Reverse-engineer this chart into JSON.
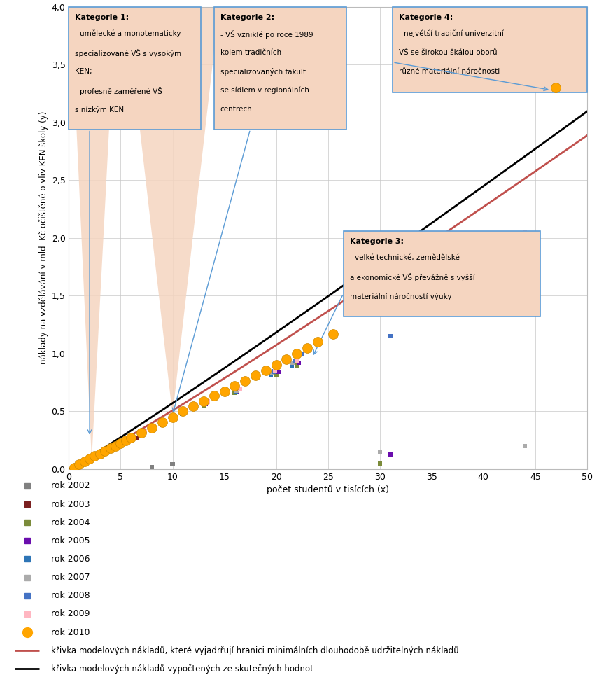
{
  "xlabel": "počet studentů v tisících (x)",
  "ylabel": "náklady na vzdělávání v mld. Kč očištěné o vliv KEN školy (y)",
  "xlim": [
    0,
    50
  ],
  "ylim": [
    0.0,
    4.0
  ],
  "yticks": [
    0.0,
    0.5,
    1.0,
    1.5,
    2.0,
    2.5,
    3.0,
    3.5,
    4.0
  ],
  "xticks": [
    0,
    5,
    10,
    15,
    20,
    25,
    30,
    35,
    40,
    45,
    50
  ],
  "year_colors": {
    "2002": "#808080",
    "2003": "#7B2020",
    "2004": "#7B8B3A",
    "2005": "#6A0DAD",
    "2006": "#2E75B6",
    "2007": "#ABABAB",
    "2008": "#4472C4",
    "2009": "#FFB6C1",
    "2010": "#FFA500"
  },
  "scatter_data": {
    "2002": [
      [
        0.4,
        0.01
      ],
      [
        0.6,
        0.02
      ],
      [
        0.8,
        0.03
      ],
      [
        1.0,
        0.04
      ],
      [
        1.3,
        0.05
      ],
      [
        1.6,
        0.07
      ],
      [
        2.0,
        0.08
      ],
      [
        2.5,
        0.1
      ],
      [
        3.0,
        0.12
      ],
      [
        4.0,
        0.17
      ],
      [
        6.0,
        0.25
      ],
      [
        8.0,
        0.02
      ],
      [
        10.0,
        0.04
      ]
    ],
    "2003": [
      [
        0.5,
        0.015
      ],
      [
        0.7,
        0.025
      ],
      [
        0.9,
        0.035
      ],
      [
        1.1,
        0.05
      ],
      [
        1.4,
        0.06
      ],
      [
        1.7,
        0.08
      ],
      [
        2.1,
        0.09
      ],
      [
        2.6,
        0.11
      ],
      [
        3.1,
        0.13
      ],
      [
        4.5,
        0.18
      ],
      [
        6.5,
        0.27
      ],
      [
        9.0,
        0.38
      ]
    ],
    "2004": [
      [
        0.5,
        0.015
      ],
      [
        0.7,
        0.025
      ],
      [
        1.0,
        0.04
      ],
      [
        1.3,
        0.055
      ],
      [
        1.6,
        0.07
      ],
      [
        1.9,
        0.085
      ],
      [
        2.3,
        0.1
      ],
      [
        2.8,
        0.12
      ],
      [
        3.3,
        0.14
      ],
      [
        4.0,
        0.17
      ],
      [
        5.0,
        0.21
      ],
      [
        7.0,
        0.3
      ],
      [
        9.0,
        0.39
      ],
      [
        11.0,
        0.48
      ],
      [
        13.0,
        0.55
      ],
      [
        16.0,
        0.66
      ],
      [
        20.0,
        0.82
      ],
      [
        22.0,
        0.9
      ],
      [
        30.0,
        0.05
      ]
    ],
    "2005": [
      [
        0.5,
        0.015
      ],
      [
        0.8,
        0.03
      ],
      [
        1.1,
        0.045
      ],
      [
        1.4,
        0.06
      ],
      [
        1.7,
        0.075
      ],
      [
        2.0,
        0.09
      ],
      [
        2.4,
        0.105
      ],
      [
        2.9,
        0.125
      ],
      [
        3.4,
        0.145
      ],
      [
        4.2,
        0.175
      ],
      [
        5.2,
        0.215
      ],
      [
        7.2,
        0.31
      ],
      [
        9.2,
        0.4
      ],
      [
        11.2,
        0.49
      ],
      [
        13.2,
        0.565
      ],
      [
        16.2,
        0.675
      ],
      [
        20.2,
        0.84
      ],
      [
        22.2,
        0.92
      ],
      [
        31.0,
        0.13
      ]
    ],
    "2006": [
      [
        0.5,
        0.015
      ],
      [
        0.8,
        0.03
      ],
      [
        1.1,
        0.045
      ],
      [
        1.5,
        0.065
      ],
      [
        1.9,
        0.085
      ],
      [
        2.3,
        0.105
      ],
      [
        2.7,
        0.12
      ],
      [
        3.2,
        0.145
      ],
      [
        3.9,
        0.17
      ],
      [
        4.9,
        0.21
      ],
      [
        6.9,
        0.3
      ],
      [
        8.9,
        0.39
      ],
      [
        10.9,
        0.48
      ],
      [
        13.0,
        0.565
      ],
      [
        16.1,
        0.675
      ],
      [
        19.5,
        0.82
      ],
      [
        21.5,
        0.9
      ]
    ],
    "2007": [
      [
        0.5,
        0.015
      ],
      [
        0.8,
        0.03
      ],
      [
        1.1,
        0.045
      ],
      [
        1.5,
        0.065
      ],
      [
        1.9,
        0.085
      ],
      [
        2.3,
        0.105
      ],
      [
        2.8,
        0.125
      ],
      [
        3.3,
        0.15
      ],
      [
        4.0,
        0.175
      ],
      [
        5.0,
        0.215
      ],
      [
        7.0,
        0.31
      ],
      [
        9.0,
        0.4
      ],
      [
        11.0,
        0.49
      ],
      [
        13.1,
        0.565
      ],
      [
        16.2,
        0.68
      ],
      [
        19.6,
        0.83
      ],
      [
        21.6,
        0.92
      ],
      [
        30.0,
        0.15
      ],
      [
        44.0,
        0.2
      ]
    ],
    "2008": [
      [
        0.5,
        0.015
      ],
      [
        0.8,
        0.03
      ],
      [
        1.2,
        0.05
      ],
      [
        1.6,
        0.07
      ],
      [
        2.0,
        0.09
      ],
      [
        2.4,
        0.11
      ],
      [
        2.9,
        0.13
      ],
      [
        3.5,
        0.155
      ],
      [
        4.2,
        0.185
      ],
      [
        5.2,
        0.225
      ],
      [
        7.2,
        0.32
      ],
      [
        9.2,
        0.415
      ],
      [
        11.2,
        0.505
      ],
      [
        13.3,
        0.58
      ],
      [
        16.4,
        0.69
      ],
      [
        19.8,
        0.845
      ],
      [
        21.8,
        0.935
      ],
      [
        22.5,
        1.0
      ],
      [
        31.0,
        1.15
      ],
      [
        33.0,
        1.35
      ]
    ],
    "2009": [
      [
        0.5,
        0.015
      ],
      [
        0.8,
        0.03
      ],
      [
        1.2,
        0.05
      ],
      [
        1.6,
        0.07
      ],
      [
        2.0,
        0.09
      ],
      [
        2.4,
        0.11
      ],
      [
        2.9,
        0.13
      ],
      [
        3.5,
        0.155
      ],
      [
        4.3,
        0.19
      ],
      [
        5.3,
        0.23
      ],
      [
        7.3,
        0.325
      ],
      [
        9.3,
        0.42
      ],
      [
        11.3,
        0.51
      ],
      [
        13.4,
        0.585
      ],
      [
        16.5,
        0.695
      ],
      [
        19.9,
        0.85
      ],
      [
        22.0,
        0.94
      ],
      [
        44.0,
        2.05
      ]
    ],
    "2010": [
      [
        0.5,
        0.015
      ],
      [
        1.0,
        0.04
      ],
      [
        1.5,
        0.065
      ],
      [
        2.0,
        0.09
      ],
      [
        2.5,
        0.115
      ],
      [
        3.0,
        0.135
      ],
      [
        3.5,
        0.16
      ],
      [
        4.0,
        0.18
      ],
      [
        4.5,
        0.2
      ],
      [
        5.0,
        0.225
      ],
      [
        5.5,
        0.25
      ],
      [
        6.0,
        0.27
      ],
      [
        7.0,
        0.315
      ],
      [
        8.0,
        0.36
      ],
      [
        9.0,
        0.405
      ],
      [
        10.0,
        0.45
      ],
      [
        11.0,
        0.5
      ],
      [
        12.0,
        0.545
      ],
      [
        13.0,
        0.59
      ],
      [
        14.0,
        0.635
      ],
      [
        15.0,
        0.675
      ],
      [
        16.0,
        0.72
      ],
      [
        17.0,
        0.765
      ],
      [
        18.0,
        0.81
      ],
      [
        19.0,
        0.855
      ],
      [
        20.0,
        0.9
      ],
      [
        21.0,
        0.95
      ],
      [
        22.0,
        1.0
      ],
      [
        23.0,
        1.045
      ],
      [
        24.0,
        1.1
      ],
      [
        25.5,
        1.17
      ],
      [
        47.0,
        3.3
      ]
    ]
  },
  "scatter_sizes": {
    "2002": 20,
    "2003": 20,
    "2004": 20,
    "2005": 20,
    "2006": 20,
    "2007": 20,
    "2008": 20,
    "2009": 20,
    "2010": 100
  },
  "scatter_markers": {
    "2002": "s",
    "2003": "s",
    "2004": "s",
    "2005": "s",
    "2006": "s",
    "2007": "s",
    "2008": "s",
    "2009": "s",
    "2010": "o"
  },
  "background_color": "#FFFFFF",
  "plot_bg_color": "#FFFFFF",
  "grid_color": "#C8C8C8",
  "shade_color": "#F5D5C0",
  "box_face_color": "#F5D5C0",
  "box_edge_color": "#5B9BD5",
  "legend_entries": [
    {
      "label": "rok 2002",
      "color": "#808080",
      "marker": "s",
      "size": 6
    },
    {
      "label": "rok 2003",
      "color": "#7B2020",
      "marker": "s",
      "size": 6
    },
    {
      "label": "rok 2004",
      "color": "#7B8B3A",
      "marker": "s",
      "size": 6
    },
    {
      "label": "rok 2005",
      "color": "#6A0DAD",
      "marker": "s",
      "size": 6
    },
    {
      "label": "rok 2006",
      "color": "#2E75B6",
      "marker": "s",
      "size": 6
    },
    {
      "label": "rok 2007",
      "color": "#ABABAB",
      "marker": "s",
      "size": 6
    },
    {
      "label": "rok 2008",
      "color": "#4472C4",
      "marker": "s",
      "size": 6
    },
    {
      "label": "rok 2009",
      "color": "#FFB6C1",
      "marker": "s",
      "size": 6
    },
    {
      "label": "rok 2010",
      "color": "#FFA500",
      "marker": "o",
      "size": 10
    }
  ],
  "red_curve_label": "křivka modelových nákladů, které vyjadrřují hranici minimálních dlouhodobě udržitelných nákladů",
  "black_curve_label": "křivka modelových nákladů vypočtených ze skutečných hodnot"
}
